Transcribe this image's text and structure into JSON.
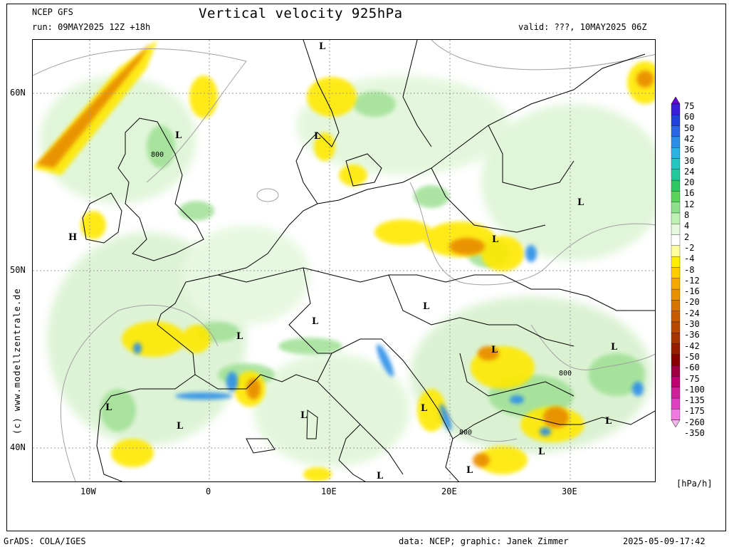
{
  "header": {
    "model": "NCEP GFS",
    "title": "Vertical velocity 925hPa",
    "run": "run: 09MAY2025 12Z +18h",
    "valid": "valid: ???, 10MAY2025 06Z"
  },
  "footer": {
    "grads": "GrADS: COLA/IGES",
    "credit": "data: NCEP; graphic: Janek Zimmer",
    "timestamp": "2025-05-09-17:42"
  },
  "side_label": "(c) www.modellzentrale.de",
  "axes": {
    "lat_ticks": [
      "60N",
      "50N",
      "40N"
    ],
    "lon_ticks": [
      "10W",
      "0",
      "10E",
      "20E",
      "30E"
    ]
  },
  "colorbar": {
    "unit": "[hPa/h]",
    "levels": [
      "75",
      "60",
      "50",
      "42",
      "36",
      "30",
      "24",
      "20",
      "16",
      "12",
      "8",
      "4",
      "2",
      "-2",
      "-4",
      "-8",
      "-12",
      "-16",
      "-20",
      "-24",
      "-30",
      "-36",
      "-42",
      "-50",
      "-60",
      "-75",
      "-100",
      "-135",
      "-175",
      "-260",
      "-350"
    ],
    "colors": [
      "#6a00d8",
      "#3a1ed8",
      "#2040e0",
      "#2a66e8",
      "#2a8ee8",
      "#28b4e0",
      "#22c8c0",
      "#20c89a",
      "#2dc864",
      "#5ad45a",
      "#8ee08a",
      "#bef0b4",
      "#e6f8de",
      "#ffffff",
      "#ffffa0",
      "#ffee00",
      "#ffcc00",
      "#f7a800",
      "#e89000",
      "#d87400",
      "#c85a00",
      "#b84800",
      "#a83400",
      "#981c00",
      "#880000",
      "#a00040",
      "#c00070",
      "#d02098",
      "#e040c0",
      "#ef7ae0",
      "#f4b8ee"
    ]
  },
  "pressure_labels": [
    "800",
    "800",
    "800"
  ],
  "centers": [
    {
      "type": "L"
    },
    {
      "type": "L"
    },
    {
      "type": "L"
    },
    {
      "type": "H"
    },
    {
      "type": "L"
    },
    {
      "type": "L"
    },
    {
      "type": "L"
    },
    {
      "type": "L"
    },
    {
      "type": "L"
    },
    {
      "type": "L"
    },
    {
      "type": "L"
    },
    {
      "type": "L"
    },
    {
      "type": "L"
    },
    {
      "type": "L"
    },
    {
      "type": "L"
    },
    {
      "type": "L"
    },
    {
      "type": "L"
    },
    {
      "type": "L"
    },
    {
      "type": "L"
    }
  ]
}
